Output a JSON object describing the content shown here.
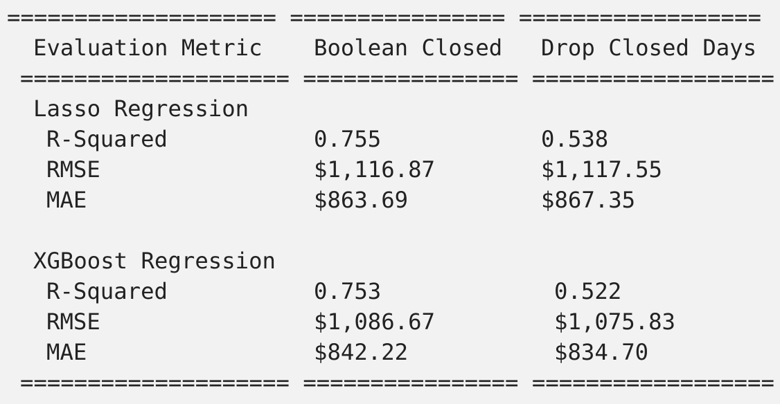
{
  "rules": {
    "top": "==================== ================ ==================",
    "under_header": "==================== ================ ==================",
    "bottom": "==================== ================ =================="
  },
  "header": {
    "metric": "Evaluation Metric",
    "boolean_closed": "Boolean Closed",
    "drop_closed_days": "Drop Closed Days"
  },
  "sections": [
    {
      "title": "Lasso Regression",
      "rows": [
        {
          "metric": "R-Squared",
          "boolean_closed": "0.755",
          "drop_closed_days": "0.538"
        },
        {
          "metric": "RMSE",
          "boolean_closed": "$1,116.87",
          "drop_closed_days": "$1,117.55"
        },
        {
          "metric": "MAE",
          "boolean_closed": "$863.69",
          "drop_closed_days": "$867.35"
        }
      ]
    },
    {
      "title": "XGBoost Regression",
      "rows": [
        {
          "metric": "R-Squared",
          "boolean_closed": "0.753",
          "drop_closed_days": "0.522"
        },
        {
          "metric": "RMSE",
          "boolean_closed": "$1,086.67",
          "drop_closed_days": "$1,075.83"
        },
        {
          "metric": "MAE",
          "boolean_closed": "$842.22",
          "drop_closed_days": "$834.70"
        }
      ]
    }
  ]
}
